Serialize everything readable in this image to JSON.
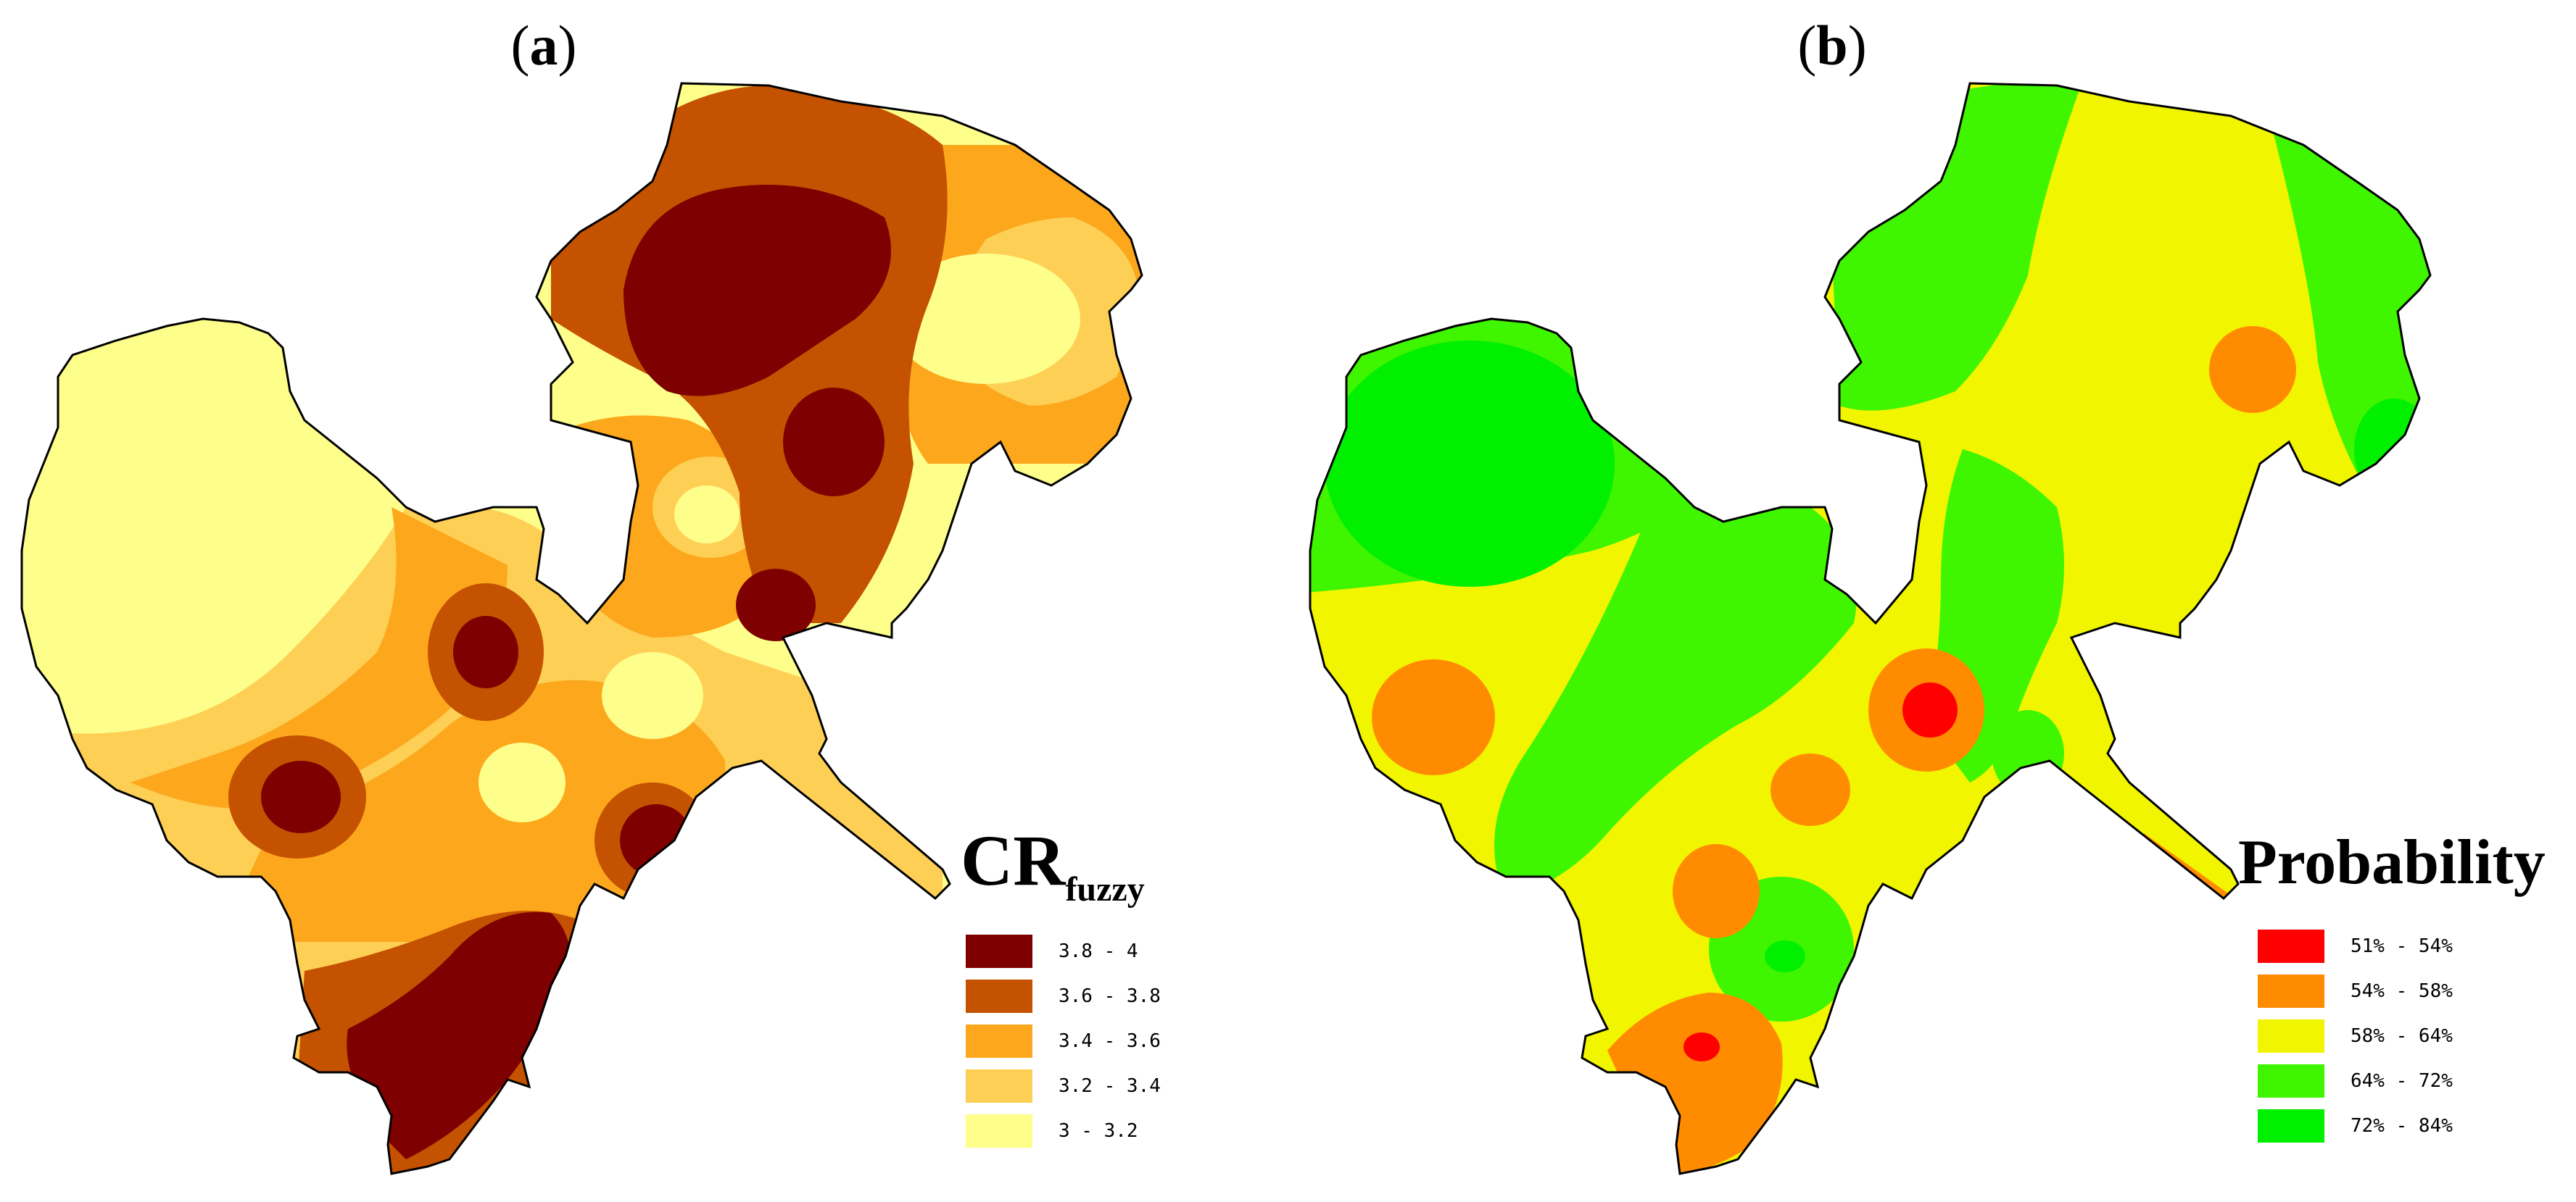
{
  "panels": [
    {
      "id": "a",
      "label": "a",
      "legend_title_main": "CR",
      "legend_title_sub": "fuzzy",
      "legend": [
        {
          "label": "3.8 - 4",
          "color": "#7f0000"
        },
        {
          "label": "3.6 - 3.8",
          "color": "#c45200"
        },
        {
          "label": "3.4 - 3.6",
          "color": "#fca71c"
        },
        {
          "label": "3.2 - 3.4",
          "color": "#fecf55"
        },
        {
          "label": "3 - 3.2",
          "color": "#fefe8a"
        }
      ]
    },
    {
      "id": "b",
      "label": "b",
      "legend_title_main": "Probability",
      "legend_title_sub": "",
      "legend": [
        {
          "label": "51% - 54%",
          "color": "#ff0000"
        },
        {
          "label": "54% - 58%",
          "color": "#ff8c00"
        },
        {
          "label": "58% - 64%",
          "color": "#f2f500"
        },
        {
          "label": "64% - 72%",
          "color": "#3ff500"
        },
        {
          "label": "72% - 84%",
          "color": "#00f000"
        }
      ]
    }
  ]
}
